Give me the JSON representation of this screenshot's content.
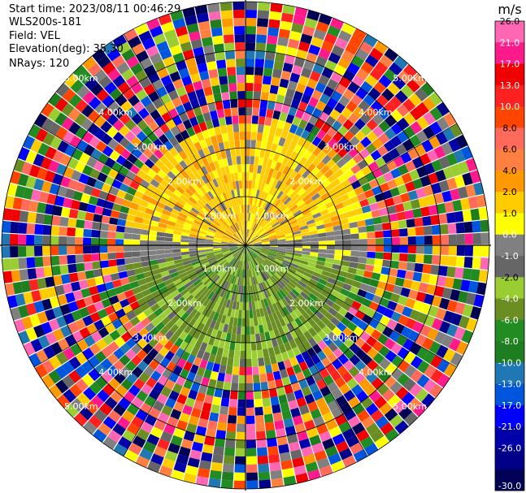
{
  "header": {
    "start_time": "Start time: 2023/08/11 00:46:29",
    "instrument": "WLS200s-181",
    "field": "Field: VEL",
    "elevation": "Elevation(deg): 35.30",
    "nrays": "NRays: 120"
  },
  "ppi": {
    "ring_labels": [
      "1.00km",
      "2.00km",
      "3.00km",
      "4.00km",
      "5.00km"
    ],
    "ring_color": "#000000",
    "label_color": "#ffffff"
  },
  "colorbar": {
    "unit": "m/s",
    "ticks": [
      "26.0",
      "21.0",
      "17.0",
      "13.0",
      "10.0",
      "8.0",
      "6.0",
      "4.0",
      "2.0",
      "1.0",
      "0.0",
      "-1.0",
      "-2.0",
      "-4.0",
      "-6.0",
      "-8.0",
      "-10.0",
      "-13.0",
      "-17.0",
      "-21.0",
      "-26.0",
      "-30.0"
    ],
    "colors": [
      "#ff66b3",
      "#ff1a8c",
      "#f00000",
      "#ff2020",
      "#ff4500",
      "#ff6a5a",
      "#ff8040",
      "#ff9900",
      "#ffcc00",
      "#ffff00",
      "#808080",
      "#666666",
      "#9acd32",
      "#6b8e23",
      "#228b22",
      "#1e7d1e",
      "#1f77b4",
      "#0055dd",
      "#0000ff",
      "#0000aa",
      "#000088",
      "#000055"
    ]
  }
}
